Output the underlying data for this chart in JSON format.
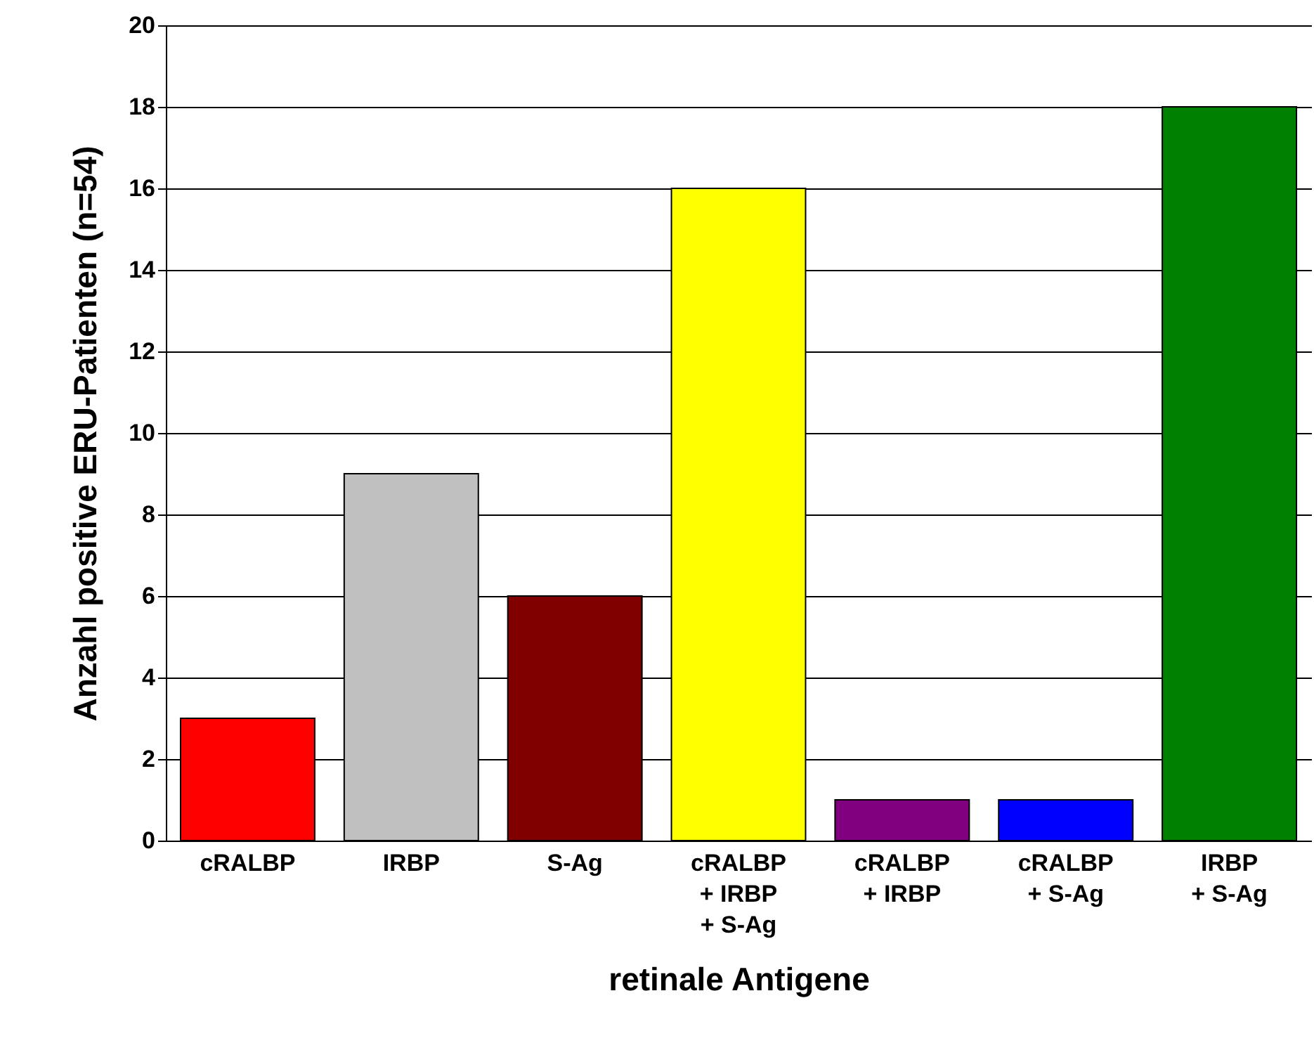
{
  "chart_data": {
    "type": "bar",
    "xlabel": "retinale Antigene",
    "ylabel": "Anzahl positive ERU-Patienten (n=54)",
    "categories": [
      "cRALBP",
      "IRBP",
      "S-Ag",
      "cRALBP\n+ IRBP\n+ S-Ag",
      "cRALBP\n+ IRBP",
      "cRALBP\n+ S-Ag",
      "IRBP\n+ S-Ag"
    ],
    "values": [
      3,
      9,
      6,
      16,
      1,
      1,
      18
    ],
    "colors": [
      "#ff0000",
      "#c0c0c0",
      "#800000",
      "#ffff00",
      "#800080",
      "#0000ff",
      "#008000"
    ],
    "ylim": [
      0,
      20
    ],
    "yticks": [
      0,
      2,
      4,
      6,
      8,
      10,
      12,
      14,
      16,
      18,
      20
    ],
    "grid": "y"
  }
}
